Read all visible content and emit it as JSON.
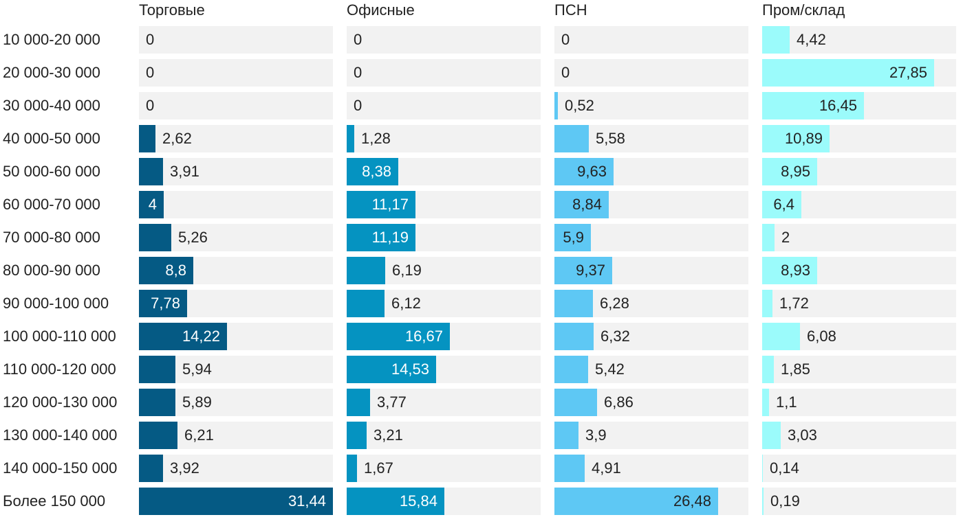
{
  "chart_data": {
    "type": "bar",
    "orientation": "horizontal",
    "layout": "small-multiples",
    "xlim": [
      0,
      31.44
    ],
    "categories": [
      "10 000-20 000",
      "20 000-30 000",
      "30 000-40 000",
      "40 000-50 000",
      "50 000-60 000",
      "60 000-70 000",
      "70 000-80 000",
      "80 000-90 000",
      "90 000-100 000",
      "100 000-110 000",
      "110 000-120 000",
      "120 000-130 000",
      "130 000-140 000",
      "140 000-150 000",
      "Более 150 000"
    ],
    "series": [
      {
        "name": "Торговые",
        "color": "#055a84",
        "label_color_inside": "#ffffff",
        "values": [
          0,
          0,
          0,
          2.62,
          3.91,
          4,
          5.26,
          8.8,
          7.78,
          14.22,
          5.94,
          5.89,
          6.21,
          3.92,
          31.44
        ],
        "labels": [
          "0",
          "0",
          "0",
          "2,62",
          "3,91",
          "4",
          "5,26",
          "8,8",
          "7,78",
          "14,22",
          "5,94",
          "5,89",
          "6,21",
          "3,92",
          "31,44"
        ]
      },
      {
        "name": "Офисные",
        "color": "#0593c1",
        "label_color_inside": "#ffffff",
        "values": [
          0,
          0,
          0,
          1.28,
          8.38,
          11.17,
          11.19,
          6.19,
          6.12,
          16.67,
          14.53,
          3.77,
          3.21,
          1.67,
          15.84
        ],
        "labels": [
          "0",
          "0",
          "0",
          "1,28",
          "8,38",
          "11,17",
          "11,19",
          "6,19",
          "6,12",
          "16,67",
          "14,53",
          "3,77",
          "3,21",
          "1,67",
          "15,84"
        ]
      },
      {
        "name": "ПСН",
        "color": "#5ec8f4",
        "label_color_inside": "#222222",
        "values": [
          0,
          0,
          0.52,
          5.58,
          9.63,
          8.84,
          5.9,
          9.37,
          6.28,
          6.32,
          5.42,
          6.86,
          3.9,
          4.91,
          26.48
        ],
        "labels": [
          "0",
          "0",
          "0,52",
          "5,58",
          "9,63",
          "8,84",
          "5,9",
          "9,37",
          "6,28",
          "6,32",
          "5,42",
          "6,86",
          "3,9",
          "4,91",
          "26,48"
        ]
      },
      {
        "name": "Пром/склад",
        "color": "#9bfbfb",
        "label_color_inside": "#222222",
        "values": [
          4.42,
          27.85,
          16.45,
          10.89,
          8.95,
          6.4,
          2,
          8.93,
          1.72,
          6.08,
          1.85,
          1.1,
          3.03,
          0.14,
          0.19
        ],
        "labels": [
          "4,42",
          "27,85",
          "16,45",
          "10,89",
          "8,95",
          "6,4",
          "2",
          "8,93",
          "1,72",
          "6,08",
          "1,85",
          "1,1",
          "3,03",
          "0,14",
          "0,19"
        ]
      }
    ]
  }
}
